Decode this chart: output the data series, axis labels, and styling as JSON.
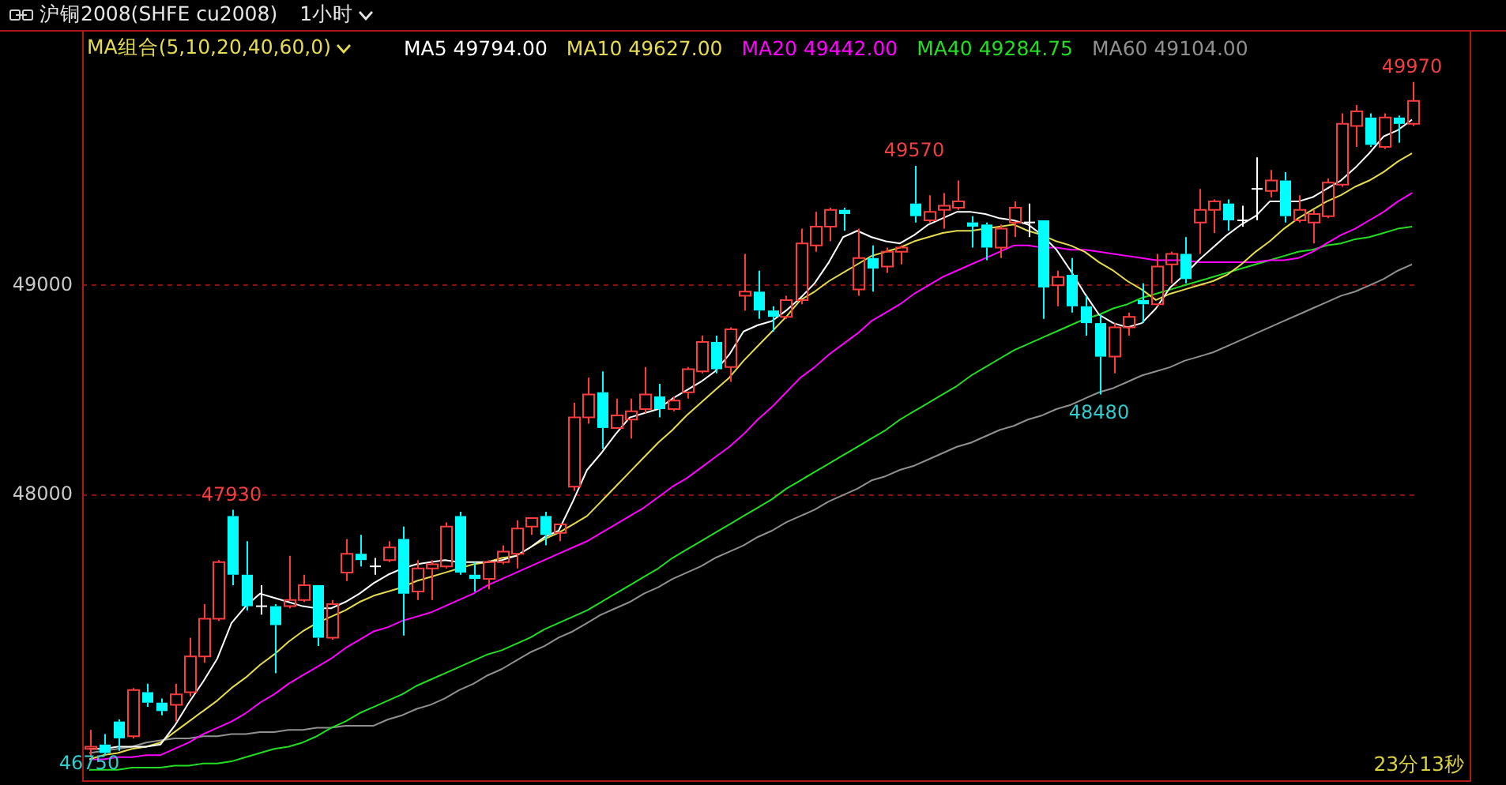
{
  "chart_data": {
    "type": "candlestick",
    "title": "沪铜2008(SHFE cu2008)",
    "subtitle": "1小时",
    "legend_title": "MA组合(5,10,20,40,60,0)",
    "legend": "top",
    "grid": "y",
    "tick_labels": "y",
    "categories": [
      null,
      null,
      null,
      null,
      null,
      null,
      null,
      null,
      null,
      null,
      null,
      null,
      null,
      null,
      null,
      null,
      null,
      null,
      null,
      null,
      null,
      null,
      null,
      null,
      null,
      null,
      null,
      null,
      null,
      null,
      null,
      null,
      null,
      null,
      null,
      null,
      null,
      null,
      null,
      null,
      null,
      null,
      null,
      null,
      null,
      null,
      null,
      null,
      null,
      null,
      null,
      null,
      null,
      null,
      null,
      null,
      null,
      null,
      null,
      null,
      null,
      null,
      null,
      null,
      null,
      null,
      null,
      null,
      null,
      null,
      null,
      null,
      null,
      null,
      null,
      null,
      null,
      null,
      null,
      null,
      null,
      null,
      null,
      null,
      null,
      null,
      null,
      null,
      null,
      null,
      null,
      null,
      null,
      null
    ],
    "ohlc": [
      [
        46790,
        46880,
        46750,
        46800
      ],
      [
        46810,
        46860,
        46760,
        46770
      ],
      [
        46920,
        46930,
        46780,
        46840
      ],
      [
        46850,
        47080,
        46840,
        47070
      ],
      [
        47060,
        47100,
        46990,
        47010
      ],
      [
        47010,
        47030,
        46950,
        46970
      ],
      [
        47000,
        47100,
        46920,
        47050
      ],
      [
        47060,
        47320,
        47040,
        47230
      ],
      [
        47230,
        47480,
        47200,
        47410
      ],
      [
        47410,
        47690,
        47400,
        47680
      ],
      [
        47900,
        47930,
        47570,
        47620
      ],
      [
        47620,
        47780,
        47450,
        47470
      ],
      [
        47470,
        47570,
        47430,
        47470
      ],
      [
        47470,
        47480,
        47150,
        47380
      ],
      [
        47470,
        47710,
        47460,
        47500
      ],
      [
        47500,
        47620,
        47490,
        47570
      ],
      [
        47570,
        47570,
        47280,
        47320
      ],
      [
        47320,
        47500,
        47310,
        47480
      ],
      [
        47630,
        47790,
        47590,
        47720
      ],
      [
        47720,
        47810,
        47660,
        47690
      ],
      [
        47660,
        47700,
        47620,
        47660
      ],
      [
        47690,
        47780,
        47680,
        47750
      ],
      [
        47790,
        47850,
        47330,
        47530
      ],
      [
        47540,
        47690,
        47500,
        47650
      ],
      [
        47650,
        47690,
        47500,
        47670
      ],
      [
        47660,
        47870,
        47650,
        47850
      ],
      [
        47900,
        47920,
        47620,
        47630
      ],
      [
        47620,
        47680,
        47540,
        47600
      ],
      [
        47600,
        47690,
        47550,
        47680
      ],
      [
        47680,
        47760,
        47670,
        47730
      ],
      [
        47720,
        47880,
        47650,
        47840
      ],
      [
        47850,
        47890,
        47810,
        47890
      ],
      [
        47900,
        47920,
        47760,
        47810
      ],
      [
        47820,
        47860,
        47780,
        47860
      ],
      [
        48040,
        48440,
        48020,
        48370
      ],
      [
        48370,
        48560,
        48340,
        48480
      ],
      [
        48490,
        48590,
        48220,
        48320
      ],
      [
        48320,
        48460,
        48320,
        48380
      ],
      [
        48360,
        48460,
        48270,
        48400
      ],
      [
        48410,
        48610,
        48390,
        48480
      ],
      [
        48470,
        48530,
        48370,
        48410
      ],
      [
        48410,
        48470,
        48400,
        48450
      ],
      [
        48490,
        48610,
        48460,
        48600
      ],
      [
        48590,
        48760,
        48580,
        48730
      ],
      [
        48730,
        48760,
        48580,
        48600
      ],
      [
        48610,
        48800,
        48540,
        48790
      ],
      [
        48950,
        49150,
        48880,
        48970
      ],
      [
        48970,
        49070,
        48840,
        48880
      ],
      [
        48880,
        48900,
        48780,
        48850
      ],
      [
        48850,
        48950,
        48840,
        48930
      ],
      [
        48930,
        49270,
        48910,
        49200
      ],
      [
        49190,
        49350,
        49160,
        49280
      ],
      [
        49280,
        49370,
        49210,
        49360
      ],
      [
        49360,
        49370,
        49260,
        49340
      ],
      [
        48980,
        49270,
        48950,
        49130
      ],
      [
        49130,
        49190,
        48970,
        49080
      ],
      [
        49090,
        49180,
        49060,
        49160
      ],
      [
        49160,
        49190,
        49100,
        49180
      ],
      [
        49390,
        49570,
        49300,
        49330
      ],
      [
        49310,
        49430,
        49300,
        49350
      ],
      [
        49360,
        49440,
        49270,
        49380
      ],
      [
        49370,
        49500,
        49360,
        49400
      ],
      [
        49300,
        49330,
        49180,
        49280
      ],
      [
        49290,
        49300,
        49120,
        49180
      ],
      [
        49180,
        49290,
        49130,
        49270
      ],
      [
        49300,
        49400,
        49230,
        49370
      ],
      [
        49300,
        49390,
        49230,
        49300
      ],
      [
        49310,
        49310,
        48840,
        48990
      ],
      [
        49000,
        49070,
        48900,
        49040
      ],
      [
        49050,
        49130,
        48870,
        48900
      ],
      [
        48900,
        48950,
        48760,
        48820
      ],
      [
        48820,
        48860,
        48480,
        48660
      ],
      [
        48660,
        48820,
        48580,
        48800
      ],
      [
        48800,
        48870,
        48760,
        48850
      ],
      [
        48930,
        49010,
        48820,
        48910
      ],
      [
        48910,
        49150,
        48900,
        49090
      ],
      [
        49100,
        49160,
        49010,
        49150
      ],
      [
        49150,
        49230,
        49010,
        49030
      ],
      [
        49300,
        49460,
        49150,
        49360
      ],
      [
        49360,
        49410,
        49250,
        49400
      ],
      [
        49390,
        49410,
        49260,
        49310
      ],
      [
        49310,
        49380,
        49280,
        49310
      ],
      [
        49460,
        49610,
        49310,
        49460
      ],
      [
        49450,
        49550,
        49420,
        49500
      ],
      [
        49500,
        49540,
        49300,
        49330
      ],
      [
        49310,
        49430,
        49300,
        49360
      ],
      [
        49300,
        49360,
        49200,
        49340
      ],
      [
        49330,
        49510,
        49320,
        49490
      ],
      [
        49480,
        49820,
        49470,
        49770
      ],
      [
        49760,
        49860,
        49660,
        49830
      ],
      [
        49800,
        49820,
        49660,
        49670
      ],
      [
        49660,
        49820,
        49650,
        49800
      ],
      [
        49800,
        49810,
        49680,
        49770
      ],
      [
        49770,
        49970,
        49760,
        49880
      ]
    ],
    "colors": [
      "#ff3c3c",
      "#00ffff",
      "#00ffff",
      "#ff3c3c",
      "#00ffff",
      "#00ffff",
      "#ff3c3c",
      "#ff3c3c",
      "#ff3c3c",
      "#ff3c3c",
      "#00ffff",
      "#00ffff",
      "#ffffff",
      "#00ffff",
      "#ff3c3c",
      "#ff3c3c",
      "#00ffff",
      "#ff3c3c",
      "#ff3c3c",
      "#00ffff",
      "#ffffff",
      "#ff3c3c",
      "#00ffff",
      "#ff3c3c",
      "#ff3c3c",
      "#ff3c3c",
      "#00ffff",
      "#00ffff",
      "#ff3c3c",
      "#ff3c3c",
      "#ff3c3c",
      "#ff3c3c",
      "#00ffff",
      "#ff3c3c",
      "#ff3c3c",
      "#ff3c3c",
      "#00ffff",
      "#ff3c3c",
      "#ff3c3c",
      "#ff3c3c",
      "#00ffff",
      "#ff3c3c",
      "#ff3c3c",
      "#ff3c3c",
      "#00ffff",
      "#ff3c3c",
      "#ff3c3c",
      "#00ffff",
      "#00ffff",
      "#ff3c3c",
      "#ff3c3c",
      "#ff3c3c",
      "#ff3c3c",
      "#00ffff",
      "#ff3c3c",
      "#00ffff",
      "#ff3c3c",
      "#ff3c3c",
      "#00ffff",
      "#ff3c3c",
      "#ff3c3c",
      "#ff3c3c",
      "#00ffff",
      "#00ffff",
      "#ff3c3c",
      "#ff3c3c",
      "#ffffff",
      "#00ffff",
      "#ff3c3c",
      "#00ffff",
      "#00ffff",
      "#00ffff",
      "#ff3c3c",
      "#ff3c3c",
      "#00ffff",
      "#ff3c3c",
      "#ff3c3c",
      "#00ffff",
      "#ff3c3c",
      "#ff3c3c",
      "#00ffff",
      "#ffffff",
      "#ffffff",
      "#ff3c3c",
      "#00ffff",
      "#ff3c3c",
      "#ff3c3c",
      "#ff3c3c",
      "#ff3c3c",
      "#ff3c3c",
      "#00ffff",
      "#ff3c3c",
      "#00ffff",
      "#ff3c3c"
    ],
    "series": [
      {
        "name": "MA5 49794.00",
        "type": "line",
        "color": "#ffffff",
        "values": [
          46790,
          46790,
          46800,
          46800,
          46800,
          46810,
          46900,
          47010,
          47110,
          47220,
          47390,
          47470,
          47530,
          47510,
          47490,
          47470,
          47460,
          47460,
          47490,
          47530,
          47580,
          47620,
          47650,
          47670,
          47680,
          47690,
          47680,
          47680,
          47680,
          47690,
          47710,
          47750,
          47800,
          47830,
          47970,
          48120,
          48200,
          48290,
          48370,
          48390,
          48410,
          48460,
          48500,
          48540,
          48590,
          48670,
          48780,
          48810,
          48830,
          48880,
          48940,
          49010,
          49110,
          49230,
          49260,
          49230,
          49210,
          49200,
          49240,
          49290,
          49320,
          49350,
          49350,
          49340,
          49320,
          49310,
          49290,
          49240,
          49170,
          49070,
          48960,
          48860,
          48820,
          48800,
          48820,
          48890,
          48990,
          49050,
          49120,
          49180,
          49240,
          49290,
          49330,
          49400,
          49400,
          49400,
          49420,
          49460,
          49500,
          49560,
          49630,
          49710,
          49740,
          49790
        ]
      },
      {
        "name": "MA10 49627.00",
        "type": "line",
        "color": "#e6dc50",
        "values": [
          46740,
          46760,
          46770,
          46790,
          46800,
          46820,
          46870,
          46920,
          46970,
          47020,
          47080,
          47130,
          47190,
          47240,
          47300,
          47350,
          47390,
          47420,
          47450,
          47490,
          47520,
          47540,
          47560,
          47590,
          47610,
          47630,
          47650,
          47670,
          47680,
          47700,
          47710,
          47750,
          47790,
          47820,
          47860,
          47900,
          47970,
          48040,
          48110,
          48180,
          48250,
          48310,
          48380,
          48440,
          48500,
          48560,
          48640,
          48710,
          48780,
          48850,
          48930,
          48970,
          49020,
          49060,
          49100,
          49140,
          49160,
          49180,
          49210,
          49230,
          49250,
          49260,
          49260,
          49270,
          49280,
          49290,
          49260,
          49240,
          49210,
          49190,
          49160,
          49110,
          49070,
          49020,
          48980,
          48930,
          48960,
          48980,
          49000,
          49020,
          49050,
          49100,
          49160,
          49210,
          49270,
          49320,
          49360,
          49400,
          49430,
          49470,
          49500,
          49540,
          49590,
          49630
        ]
      },
      {
        "name": "MA20 49442.00",
        "type": "line",
        "color": "#ff00ff",
        "values": [
          46740,
          46740,
          46750,
          46750,
          46760,
          46760,
          46790,
          46820,
          46860,
          46890,
          46920,
          46960,
          47010,
          47050,
          47100,
          47140,
          47180,
          47220,
          47270,
          47310,
          47350,
          47370,
          47400,
          47420,
          47440,
          47470,
          47500,
          47530,
          47570,
          47600,
          47630,
          47660,
          47690,
          47720,
          47750,
          47780,
          47820,
          47860,
          47900,
          47940,
          47990,
          48040,
          48080,
          48130,
          48180,
          48230,
          48290,
          48360,
          48420,
          48490,
          48560,
          48610,
          48670,
          48720,
          48770,
          48830,
          48870,
          48910,
          48960,
          49000,
          49040,
          49070,
          49100,
          49130,
          49160,
          49190,
          49190,
          49180,
          49180,
          49170,
          49170,
          49160,
          49150,
          49140,
          49130,
          49120,
          49120,
          49120,
          49110,
          49110,
          49110,
          49110,
          49110,
          49120,
          49120,
          49130,
          49160,
          49200,
          49240,
          49270,
          49310,
          49350,
          49400,
          49440
        ]
      },
      {
        "name": "MA40 49284.75",
        "type": "line",
        "color": "#22dd22",
        "values": [
          46690,
          46690,
          46690,
          46700,
          46700,
          46700,
          46710,
          46710,
          46720,
          46720,
          46730,
          46750,
          46770,
          46790,
          46800,
          46820,
          46850,
          46890,
          46920,
          46960,
          46990,
          47020,
          47050,
          47090,
          47120,
          47150,
          47180,
          47210,
          47240,
          47260,
          47290,
          47320,
          47360,
          47390,
          47420,
          47450,
          47490,
          47530,
          47570,
          47610,
          47650,
          47700,
          47740,
          47780,
          47820,
          47860,
          47900,
          47940,
          47980,
          48030,
          48070,
          48110,
          48150,
          48190,
          48230,
          48270,
          48310,
          48360,
          48400,
          48440,
          48480,
          48520,
          48570,
          48610,
          48650,
          48690,
          48720,
          48750,
          48780,
          48810,
          48840,
          48860,
          48890,
          48910,
          48940,
          48960,
          48980,
          49000,
          49020,
          49040,
          49060,
          49080,
          49100,
          49120,
          49140,
          49160,
          49170,
          49190,
          49200,
          49220,
          49230,
          49250,
          49270,
          49280
        ]
      },
      {
        "name": "MA60 49104.00",
        "type": "line",
        "color": "#909090",
        "values": [
          46770,
          46780,
          46790,
          46800,
          46820,
          46830,
          46840,
          46840,
          46850,
          46850,
          46860,
          46860,
          46870,
          46870,
          46880,
          46880,
          46890,
          46890,
          46900,
          46900,
          46900,
          46930,
          46950,
          46980,
          47000,
          47030,
          47070,
          47100,
          47140,
          47170,
          47210,
          47250,
          47280,
          47320,
          47350,
          47390,
          47430,
          47460,
          47490,
          47530,
          47560,
          47600,
          47630,
          47660,
          47700,
          47730,
          47760,
          47800,
          47830,
          47870,
          47900,
          47930,
          47970,
          48000,
          48030,
          48070,
          48090,
          48120,
          48140,
          48170,
          48200,
          48230,
          48250,
          48280,
          48310,
          48330,
          48360,
          48380,
          48410,
          48430,
          48460,
          48490,
          48510,
          48540,
          48570,
          48590,
          48610,
          48640,
          48660,
          48680,
          48710,
          48740,
          48770,
          48800,
          48830,
          48860,
          48890,
          48920,
          48950,
          48970,
          49000,
          49030,
          49070,
          49100
        ]
      }
    ],
    "ylim": [
      46640,
      50210
    ],
    "yticks": [
      48000,
      49000
    ],
    "annotations": [
      {
        "text": "49970",
        "y": 49970
      },
      {
        "text": "49570",
        "y": 49570
      },
      {
        "text": "47930",
        "y": 47930
      },
      {
        "text": "48480",
        "y": 48480
      },
      {
        "text": "46750",
        "y": 46750
      },
      "23分13秒"
    ]
  }
}
